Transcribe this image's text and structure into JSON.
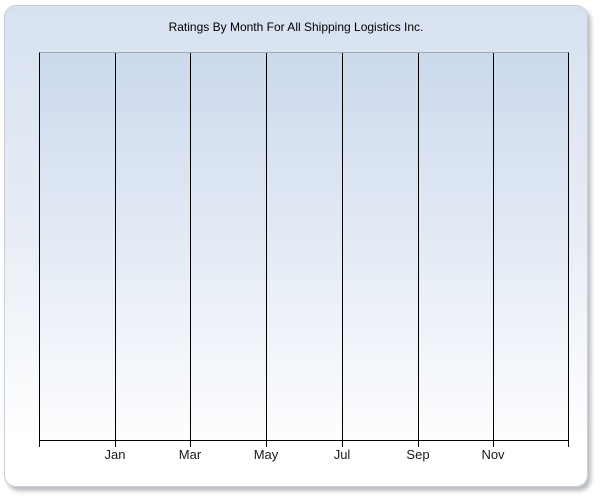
{
  "window": {
    "title_bar": "Ratings By Month For All Shipping Logistics Inc."
  },
  "chart_data": {
    "type": "line",
    "title": "Ratings By Month For All Shipping Logistics Inc.",
    "xlabel": "",
    "ylabel": "",
    "x_tick_labels": [
      "Jan",
      "Mar",
      "May",
      "Jul",
      "Sep",
      "Nov"
    ],
    "x_axis_divisions": 7,
    "y_tick_labels": [],
    "series": [],
    "plot_empty": true,
    "grid": "vertical",
    "legend": "none"
  },
  "colors": {
    "frame_bg_top": "#d7e1f0",
    "frame_bg_mid": "#e9eef6",
    "frame_bg_bottom": "#ffffff",
    "plot_bg_top": "#cbd9ec",
    "plot_bg_bottom": "#fdfdfe",
    "grid_line": "#000000",
    "axis_line": "#000000",
    "plot_top_border": "#9ca7b8",
    "title_text": "#000000",
    "tick_label_text": "#1a1a1a",
    "frame_border": "#c9cfd9"
  }
}
